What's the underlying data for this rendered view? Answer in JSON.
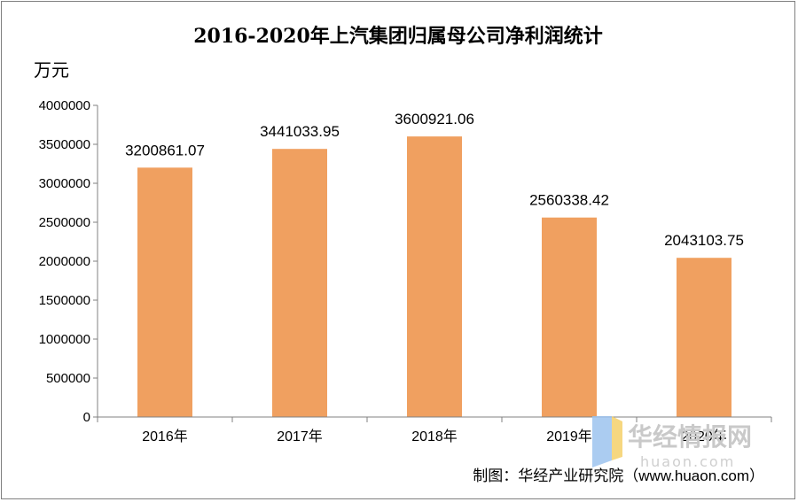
{
  "chart_data": {
    "type": "bar",
    "title": "2016-2020年上汽集团归属母公司净利润统计",
    "ylabel": "万元",
    "xlabel": "",
    "categories": [
      "2016年",
      "2017年",
      "2018年",
      "2019年",
      "2020年"
    ],
    "values": [
      3200861.07,
      3441033.95,
      3600921.06,
      2560338.42,
      2043103.75
    ],
    "data_labels": [
      "3200861.07",
      "3441033.95",
      "3600921.06",
      "2560338.42",
      "2043103.75"
    ],
    "yticks": [
      0,
      500000,
      1000000,
      1500000,
      2000000,
      2500000,
      3000000,
      3500000,
      4000000
    ],
    "ylim": [
      0,
      4000000
    ],
    "grid": false,
    "legend": "none",
    "bar_color": "#f0a060"
  },
  "source": "制图：华经产业研究院（www.huaon.com）",
  "watermark": {
    "cn": "华经情报网",
    "en": "huaon.com"
  }
}
